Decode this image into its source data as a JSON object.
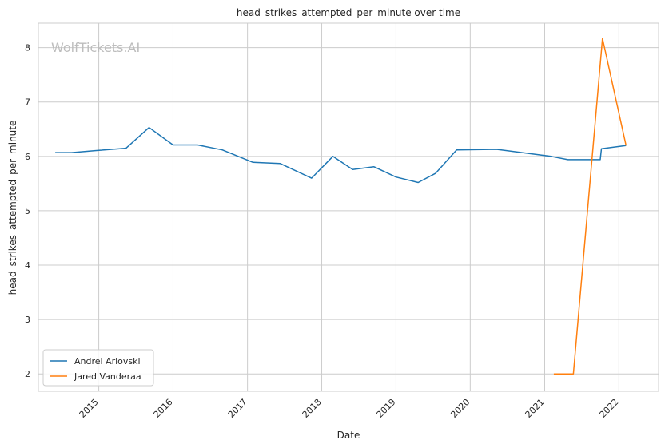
{
  "watermark": "WolfTickets.AI",
  "chart_data": {
    "type": "line",
    "title": "head_strikes_attempted_per_minute over time",
    "xlabel": "Date",
    "ylabel": "head_strikes_attempted_per_minute",
    "x_ticks": [
      "2015",
      "2016",
      "2017",
      "2018",
      "2019",
      "2020",
      "2021",
      "2022"
    ],
    "y_ticks": [
      2,
      3,
      4,
      5,
      6,
      7,
      8
    ],
    "xlim": [
      "2014-03-10",
      "2022-07-15"
    ],
    "ylim": [
      1.68,
      8.45
    ],
    "grid": true,
    "legend_position": "lower-left",
    "series": [
      {
        "name": "Andrei Arlovski",
        "color": "#1f77b4",
        "points": [
          {
            "date": "2014-06-01",
            "value": 6.07
          },
          {
            "date": "2014-08-20",
            "value": 6.07
          },
          {
            "date": "2015-01-01",
            "value": 6.11
          },
          {
            "date": "2015-05-15",
            "value": 6.15
          },
          {
            "date": "2015-09-05",
            "value": 6.53
          },
          {
            "date": "2016-01-01",
            "value": 6.21
          },
          {
            "date": "2016-05-01",
            "value": 6.21
          },
          {
            "date": "2016-08-30",
            "value": 6.12
          },
          {
            "date": "2017-01-28",
            "value": 5.89
          },
          {
            "date": "2017-06-10",
            "value": 5.87
          },
          {
            "date": "2017-11-12",
            "value": 5.6
          },
          {
            "date": "2018-02-25",
            "value": 6.0
          },
          {
            "date": "2018-06-02",
            "value": 5.76
          },
          {
            "date": "2018-09-15",
            "value": 5.81
          },
          {
            "date": "2019-01-01",
            "value": 5.62
          },
          {
            "date": "2019-04-20",
            "value": 5.52
          },
          {
            "date": "2019-07-15",
            "value": 5.69
          },
          {
            "date": "2019-10-26",
            "value": 6.12
          },
          {
            "date": "2020-05-09",
            "value": 6.13
          },
          {
            "date": "2020-10-01",
            "value": 6.06
          },
          {
            "date": "2021-02-01",
            "value": 6.0
          },
          {
            "date": "2021-04-25",
            "value": 5.94
          },
          {
            "date": "2021-10-01",
            "value": 5.94
          },
          {
            "date": "2021-10-07",
            "value": 6.14
          },
          {
            "date": "2022-02-05",
            "value": 6.2
          }
        ]
      },
      {
        "name": "Jared Vanderaa",
        "color": "#ff7f0e",
        "points": [
          {
            "date": "2021-02-15",
            "value": 2.0
          },
          {
            "date": "2021-05-22",
            "value": 2.0
          },
          {
            "date": "2021-10-12",
            "value": 8.17
          },
          {
            "date": "2022-02-05",
            "value": 6.2
          }
        ]
      }
    ]
  }
}
